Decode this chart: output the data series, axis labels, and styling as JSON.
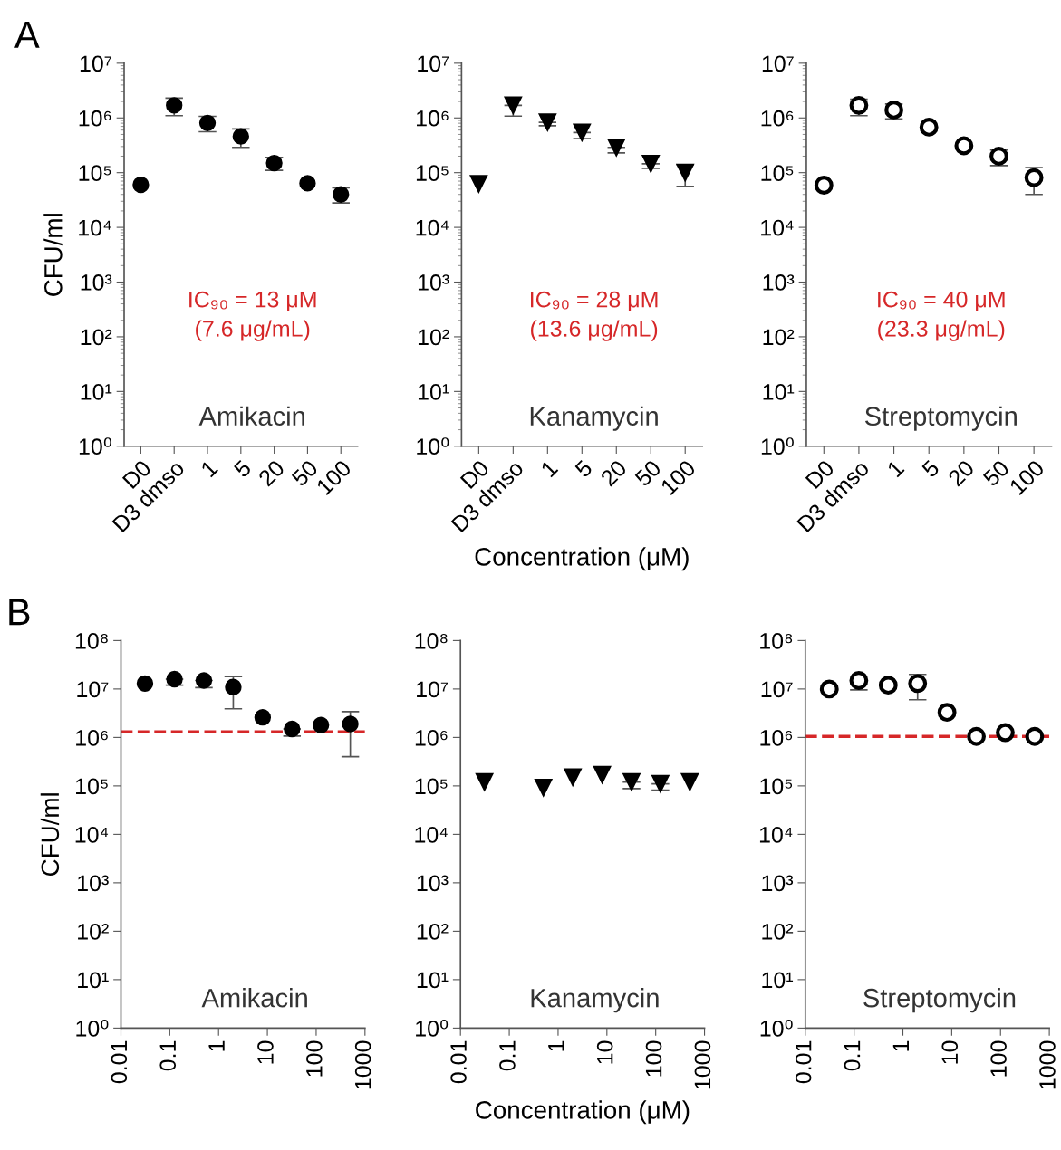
{
  "chart_data": [
    {
      "type": "scatter",
      "title": "A",
      "ylabel": "CFU/ml",
      "categories": [
        "D0",
        "D3 dmso",
        "1",
        "5",
        "20",
        "50",
        "100"
      ],
      "log": "y",
      "ylim": [
        1,
        10000000
      ],
      "yticks": [
        {
          "value": 1,
          "label": "10⁰"
        },
        {
          "value": 10,
          "label": "10¹"
        },
        {
          "value": 100,
          "label": "10²"
        },
        {
          "value": 1000,
          "label": "10³"
        },
        {
          "value": 10000,
          "label": "10⁴"
        },
        {
          "value": 100000,
          "label": "10⁵"
        },
        {
          "value": 1000000,
          "label": "10⁶"
        },
        {
          "value": 10000000,
          "label": "10⁷"
        }
      ],
      "marker": "circle",
      "grid": false,
      "annotations": [
        "IC₉₀ = 13 μM\n(7.6 μg/mL)",
        "Amikacin"
      ],
      "series": [
        {
          "color": "#000000",
          "values": [
            60000,
            1700000,
            810000,
            460000,
            150000,
            64000,
            40000
          ],
          "errors": [
            null,
            [
              1100000,
              2300000
            ],
            [
              560000,
              1070000
            ],
            [
              290000,
              630000
            ],
            [
              110000,
              190000
            ],
            null,
            [
              28000,
              53000
            ]
          ]
        }
      ]
    },
    {
      "type": "scatter",
      "xlabel": "Concentration (μM)",
      "categories": [
        "D0",
        "D3 dmso",
        "1",
        "5",
        "20",
        "50",
        "100"
      ],
      "log": "y",
      "ylim": [
        1,
        10000000
      ],
      "yticks": [
        {
          "value": 1,
          "label": "10⁰"
        },
        {
          "value": 10,
          "label": "10¹"
        },
        {
          "value": 100,
          "label": "10²"
        },
        {
          "value": 1000,
          "label": "10³"
        },
        {
          "value": 10000,
          "label": "10⁴"
        },
        {
          "value": 100000,
          "label": "10⁵"
        },
        {
          "value": 1000000,
          "label": "10⁶"
        },
        {
          "value": 10000000,
          "label": "10⁷"
        }
      ],
      "marker": "triangle",
      "grid": false,
      "annotations": [
        "IC₉₀ = 28 μM\n(13.6 μg/mL)",
        "Kanamycin"
      ],
      "series": [
        {
          "color": "#000000",
          "values": [
            62000,
            1700000,
            830000,
            540000,
            290000,
            145000,
            100000
          ],
          "errors": [
            null,
            [
              1080000,
              1700000
            ],
            [
              720000,
              830000
            ],
            [
              420000,
              540000
            ],
            [
              230000,
              290000
            ],
            [
              120000,
              145000
            ],
            [
              56000,
              140000
            ]
          ]
        }
      ]
    },
    {
      "type": "scatter",
      "categories": [
        "D0",
        "D3 dmso",
        "1",
        "5",
        "20",
        "50",
        "100"
      ],
      "log": "y",
      "ylim": [
        1,
        10000000
      ],
      "yticks": [
        {
          "value": 1,
          "label": "10⁰"
        },
        {
          "value": 10,
          "label": "10¹"
        },
        {
          "value": 100,
          "label": "10²"
        },
        {
          "value": 1000,
          "label": "10³"
        },
        {
          "value": 10000,
          "label": "10⁴"
        },
        {
          "value": 100000,
          "label": "10⁵"
        },
        {
          "value": 1000000,
          "label": "10⁶"
        },
        {
          "value": 10000000,
          "label": "10⁷"
        }
      ],
      "marker": "open circle",
      "grid": false,
      "annotations": [
        "IC₉₀ = 40 μM\n(23.3 μg/mL)",
        "Streptomycin"
      ],
      "series": [
        {
          "color": "#000000",
          "values": [
            59000,
            1700000,
            1400000,
            680000,
            310000,
            200000,
            81000
          ],
          "errors": [
            null,
            [
              1100000,
              2200000
            ],
            [
              960000,
              1800000
            ],
            null,
            null,
            [
              135000,
              260000
            ],
            [
              40000,
              124000
            ]
          ]
        }
      ]
    },
    {
      "type": "scatter",
      "title": "B",
      "ylabel": "CFU/ml",
      "x": [
        0.031,
        0.125,
        0.5,
        2,
        8,
        32,
        125,
        500
      ],
      "log": "xy",
      "xlim": [
        0.01,
        1000
      ],
      "xticks": [
        0.01,
        0.1,
        1,
        10,
        100,
        1000
      ],
      "ylim": [
        1,
        100000000
      ],
      "yticks": [
        {
          "value": 1,
          "label": "10⁰"
        },
        {
          "value": 10,
          "label": "10¹"
        },
        {
          "value": 100,
          "label": "10²"
        },
        {
          "value": 1000,
          "label": "10³"
        },
        {
          "value": 10000,
          "label": "10⁴"
        },
        {
          "value": 100000,
          "label": "10⁵"
        },
        {
          "value": 1000000,
          "label": "10⁶"
        },
        {
          "value": 10000000,
          "label": "10⁷"
        },
        {
          "value": 100000000,
          "label": "10⁸"
        }
      ],
      "marker": "circle",
      "grid": false,
      "annotations": [
        "Amikacin"
      ],
      "ref_lines": [
        {
          "axis": "y",
          "value": 1300000,
          "color": "#d62728",
          "line_style": "dashed"
        }
      ],
      "series": [
        {
          "color": "#000000",
          "values": [
            13000000,
            16000000,
            15000000,
            11000000,
            2600000,
            1500000,
            1800000,
            1900000
          ],
          "errors": [
            null,
            [
              12000000,
              16000000
            ],
            [
              10700000,
              15000000
            ],
            [
              3900000,
              18000000
            ],
            null,
            [
              1070000,
              1500000
            ],
            null,
            [
              400000,
              3400000
            ]
          ]
        }
      ]
    },
    {
      "type": "scatter",
      "xlabel": "Concentration (μM)",
      "x": [
        0.031,
        0.5,
        2,
        8,
        32,
        125,
        500
      ],
      "log": "xy",
      "xlim": [
        0.01,
        1000
      ],
      "xticks": [
        0.01,
        0.1,
        1,
        10,
        100,
        1000
      ],
      "ylim": [
        1,
        100000000
      ],
      "yticks": [
        {
          "value": 1,
          "label": "10⁰"
        },
        {
          "value": 10,
          "label": "10¹"
        },
        {
          "value": 100,
          "label": "10²"
        },
        {
          "value": 1000,
          "label": "10³"
        },
        {
          "value": 10000,
          "label": "10⁴"
        },
        {
          "value": 100000,
          "label": "10⁵"
        },
        {
          "value": 1000000,
          "label": "10⁶"
        },
        {
          "value": 10000000,
          "label": "10⁷"
        },
        {
          "value": 100000000,
          "label": "10⁸"
        }
      ],
      "marker": "triangle",
      "grid": false,
      "annotations": [
        "Kanamycin"
      ],
      "series": [
        {
          "color": "#000000",
          "values": [
            120000,
            92000,
            150000,
            170000,
            120000,
            110000,
            120000
          ],
          "errors": [
            null,
            null,
            null,
            null,
            [
              88000,
              120000
            ],
            [
              82000,
              110000
            ],
            null
          ]
        }
      ]
    },
    {
      "type": "scatter",
      "x": [
        0.031,
        0.125,
        0.5,
        2,
        8,
        32,
        125,
        500
      ],
      "log": "xy",
      "xlim": [
        0.01,
        1000
      ],
      "xticks": [
        0.01,
        0.1,
        1,
        10,
        100,
        1000
      ],
      "ylim": [
        1,
        100000000
      ],
      "yticks": [
        {
          "value": 1,
          "label": "10⁰"
        },
        {
          "value": 10,
          "label": "10¹"
        },
        {
          "value": 100,
          "label": "10²"
        },
        {
          "value": 1000,
          "label": "10³"
        },
        {
          "value": 10000,
          "label": "10⁴"
        },
        {
          "value": 100000,
          "label": "10⁵"
        },
        {
          "value": 1000000,
          "label": "10⁶"
        },
        {
          "value": 10000000,
          "label": "10⁷"
        },
        {
          "value": 100000000,
          "label": "10⁸"
        }
      ],
      "marker": "open circle",
      "grid": false,
      "annotations": [
        "Streptomycin"
      ],
      "ref_lines": [
        {
          "axis": "y",
          "value": 1050000,
          "color": "#d62728",
          "line_style": "dashed"
        }
      ],
      "series": [
        {
          "color": "#000000",
          "values": [
            10000000,
            15000000,
            12000000,
            13000000,
            3300000,
            1050000,
            1260000,
            1050000
          ],
          "errors": [
            null,
            [
              9600000,
              15000000
            ],
            null,
            [
              6000000,
              20000000
            ],
            null,
            null,
            null,
            null
          ]
        }
      ]
    }
  ]
}
